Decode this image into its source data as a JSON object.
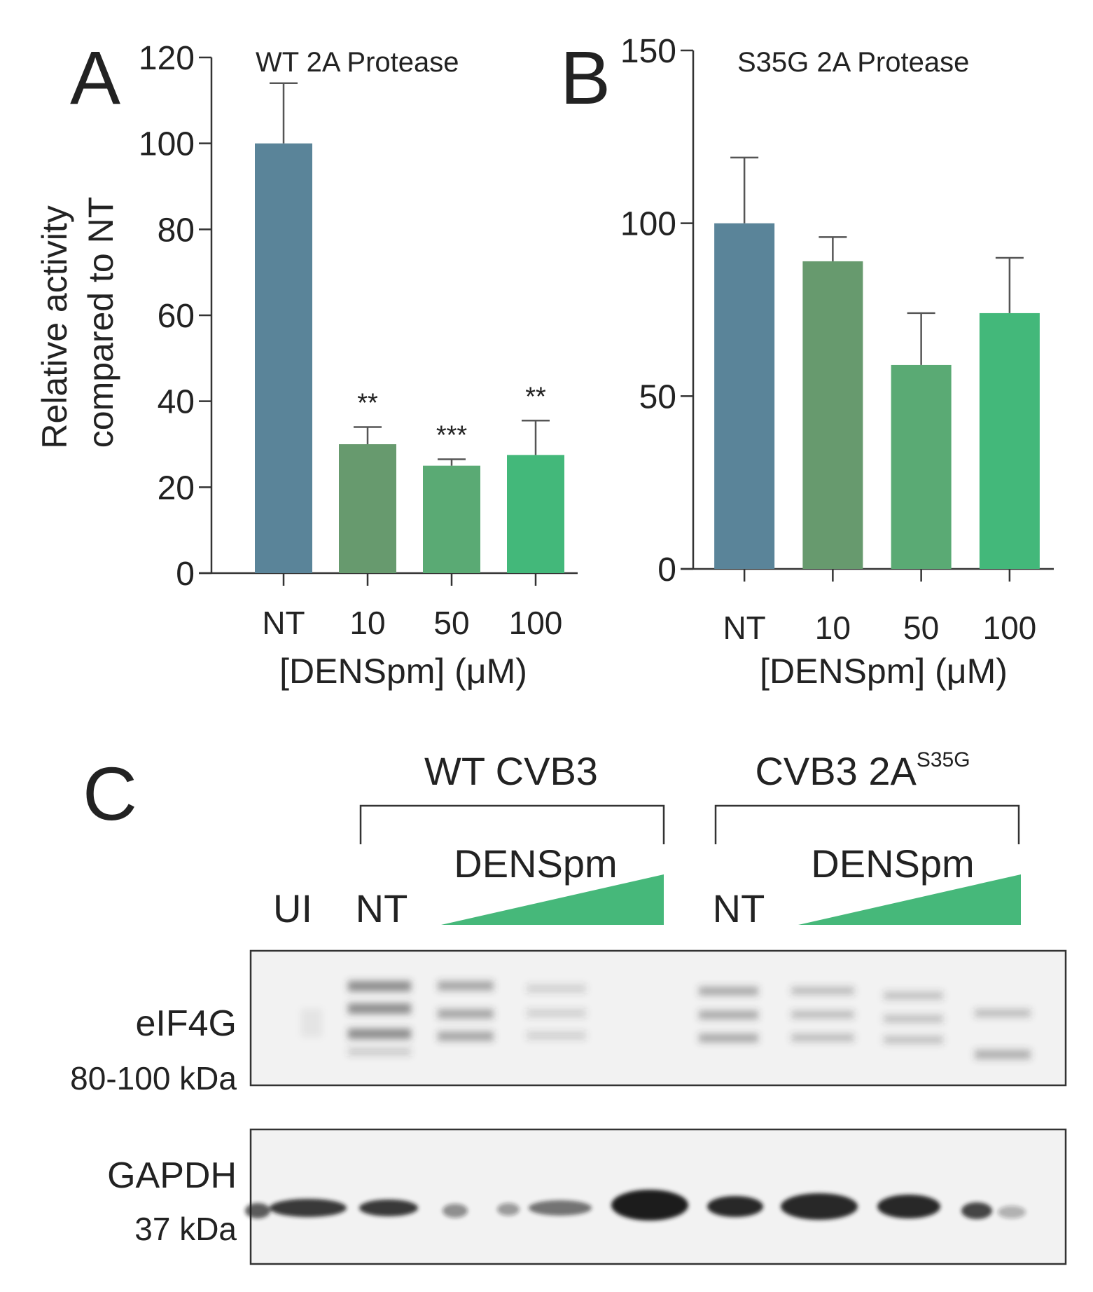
{
  "figure": {
    "panel_c": {
      "letter": "C",
      "groups": [
        {
          "label": "WT CVB3",
          "sup": ""
        },
        {
          "label": "CVB3 2A",
          "sup": "S35G"
        }
      ],
      "drug_label": "DENSpm",
      "lane_labels": [
        "UI",
        "NT",
        "NT"
      ],
      "blots": [
        {
          "name": "eIF4G",
          "size": "80-100 kDa"
        },
        {
          "name": "GAPDH",
          "size": "37 kDa"
        }
      ],
      "colors": {
        "gradient": "#46b87a"
      }
    }
  },
  "chart_data": [
    {
      "panel": "A",
      "type": "bar",
      "title": "WT 2A Protease",
      "categories": [
        "NT",
        "10",
        "50",
        "100"
      ],
      "values": [
        100,
        30,
        25,
        27.5
      ],
      "errors": [
        14,
        4,
        1.5,
        8
      ],
      "significance": [
        "",
        "**",
        "***",
        "**"
      ],
      "colors": [
        "#5a8499",
        "#679a6e",
        "#5aaa74",
        "#43b87a"
      ],
      "ylabel": "Relative activity\ncompared to NT",
      "xlabel": "[DENSpm] (μM)",
      "ylim": [
        0,
        120
      ],
      "yticks": [
        0,
        20,
        40,
        60,
        80,
        100,
        120
      ]
    },
    {
      "panel": "B",
      "type": "bar",
      "title": "S35G 2A Protease",
      "categories": [
        "NT",
        "10",
        "50",
        "100"
      ],
      "values": [
        100,
        89,
        59,
        74
      ],
      "errors": [
        19,
        7,
        15,
        16
      ],
      "significance": [
        "",
        "",
        "",
        ""
      ],
      "colors": [
        "#5a8499",
        "#679a6e",
        "#5aaa74",
        "#43b87a"
      ],
      "ylabel": "",
      "xlabel": "[DENSpm] (μM)",
      "ylim": [
        0,
        150
      ],
      "yticks": [
        0,
        50,
        100,
        150
      ]
    }
  ]
}
